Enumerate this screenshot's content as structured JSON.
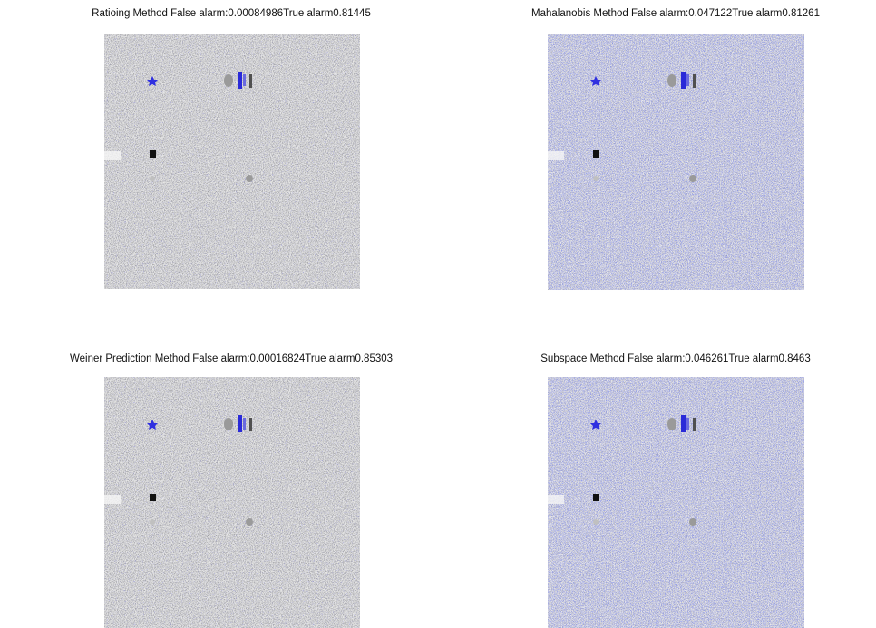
{
  "panels": [
    {
      "title": "Ratioing Method False alarm:0.00084986True alarm0.81445"
    },
    {
      "title": "Mahalanobis Method False alarm:0.047122True alarm0.81261"
    },
    {
      "title": "Weiner Prediction Method False alarm:0.00016824True alarm0.85303"
    },
    {
      "title": "Subspace Method False alarm:0.046261True alarm0.8463"
    }
  ]
}
